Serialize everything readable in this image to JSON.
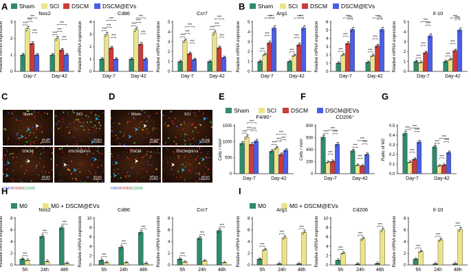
{
  "colors": {
    "green": "#2e8b6b",
    "yellow": "#ede48a",
    "red": "#cc3a3a",
    "blue": "#4a5ee8",
    "axis": "#222222",
    "arrow_cyan": "#29a9e0",
    "arrow_white": "#ffffff",
    "micro_bg": "#1a0d08"
  },
  "labels": {
    "letters": {
      "A": "A",
      "B": "B",
      "C": "C",
      "D": "D",
      "E": "E",
      "F": "F",
      "G": "G",
      "H": "H",
      "I": "I"
    },
    "sig3": "***",
    "sig1": "*",
    "sig2": "**",
    "legend_top": [
      "Sham",
      "SCI",
      "DSCM",
      "DSCM@EVs"
    ],
    "legend_bottom": [
      "M0",
      "M0 + DSCM@EVs"
    ],
    "scale_bar": "50 μm",
    "micro_C": {
      "titles": [
        "Sham",
        "SCI",
        "DSCM",
        "DSCM@EVs"
      ],
      "caption": [
        "DAPI",
        "/",
        "F4/80",
        "/",
        "CD206"
      ]
    },
    "micro_D": {
      "titles": [
        "Sham",
        "SCI",
        "DSCM",
        "DSCM@EVs"
      ],
      "caption": [
        "DAPI",
        "/",
        "F4/80",
        "/",
        "CD206"
      ]
    }
  },
  "chart_data": [
    {
      "panel": "A",
      "type": "bar",
      "title": "Nos2",
      "ylabel": "Relative mRNA expression",
      "categories": [
        "Day-7",
        "Day-42"
      ],
      "ylim": [
        0,
        3
      ],
      "ticks": [
        0,
        1,
        2,
        3
      ],
      "series": [
        {
          "name": "Sham",
          "values": [
            1.0,
            1.0
          ]
        },
        {
          "name": "SCI",
          "values": [
            2.6,
            2.0
          ]
        },
        {
          "name": "DSCM",
          "values": [
            1.7,
            1.3
          ]
        },
        {
          "name": "DSCM@EVs",
          "values": [
            1.0,
            1.0
          ]
        }
      ]
    },
    {
      "panel": "A",
      "type": "bar",
      "title": "Cd86",
      "ylabel": "Relative mRNA expression",
      "categories": [
        "Day-7",
        "Day-42"
      ],
      "ylim": [
        0,
        4
      ],
      "ticks": [
        0,
        1,
        2,
        3,
        4
      ],
      "series": [
        {
          "name": "Sham",
          "values": [
            1.0,
            1.0
          ]
        },
        {
          "name": "SCI",
          "values": [
            3.0,
            3.4
          ]
        },
        {
          "name": "DSCM",
          "values": [
            1.9,
            2.2
          ]
        },
        {
          "name": "DSCM@EVs",
          "values": [
            1.0,
            1.0
          ]
        }
      ]
    },
    {
      "panel": "A",
      "type": "bar",
      "title": "Ccr7",
      "ylabel": "Relative mRNA expression",
      "categories": [
        "Day-7",
        "Day-42"
      ],
      "ylim": [
        0,
        5
      ],
      "ticks": [
        0,
        1,
        2,
        3,
        4,
        5
      ],
      "series": [
        {
          "name": "Sham",
          "values": [
            1.0,
            1.0
          ]
        },
        {
          "name": "SCI",
          "values": [
            3.1,
            3.9
          ]
        },
        {
          "name": "DSCM",
          "values": [
            1.8,
            2.4
          ]
        },
        {
          "name": "DSCM@EVs",
          "values": [
            1.2,
            1.4
          ]
        }
      ]
    },
    {
      "panel": "B",
      "type": "bar",
      "title": "Arg1",
      "ylabel": "Relative mRNA expression",
      "categories": [
        "Day-7",
        "Day-42"
      ],
      "ylim": [
        0,
        5
      ],
      "ticks": [
        0,
        1,
        2,
        3,
        4,
        5
      ],
      "series": [
        {
          "name": "Sham",
          "values": [
            1.0,
            1.0
          ]
        },
        {
          "name": "SCI",
          "values": [
            1.7,
            1.6
          ]
        },
        {
          "name": "DSCM",
          "values": [
            2.9,
            2.7
          ]
        },
        {
          "name": "DSCM@EVs",
          "values": [
            4.4,
            4.4
          ]
        }
      ]
    },
    {
      "panel": "B",
      "type": "bar",
      "title": "",
      "ylabel": "Relative mRNA expression",
      "categories": [
        "Day-7",
        "Day-42"
      ],
      "ylim": [
        0,
        6
      ],
      "ticks": [
        0,
        1,
        2,
        3,
        4,
        5,
        6
      ],
      "series": [
        {
          "name": "Sham",
          "values": [
            1.0,
            1.1
          ]
        },
        {
          "name": "SCI",
          "values": [
            2.0,
            1.9
          ]
        },
        {
          "name": "DSCM",
          "values": [
            3.4,
            3.1
          ]
        },
        {
          "name": "DSCM@EVs",
          "values": [
            5.1,
            5.1
          ]
        }
      ]
    },
    {
      "panel": "B",
      "type": "bar",
      "title": "Il-10",
      "ylabel": "Relative mRNA expression",
      "categories": [
        "Day-7",
        "Day-42"
      ],
      "ylim": [
        0,
        5
      ],
      "ticks": [
        0,
        1,
        2,
        3,
        4,
        5
      ],
      "series": [
        {
          "name": "Sham",
          "values": [
            1.0,
            1.0
          ]
        },
        {
          "name": "SCI",
          "values": [
            0.9,
            1.2
          ]
        },
        {
          "name": "DSCM",
          "values": [
            1.9,
            2.1
          ]
        },
        {
          "name": "DSCM@EVs",
          "values": [
            3.6,
            4.2
          ]
        }
      ]
    },
    {
      "panel": "E",
      "type": "bar",
      "title": "F4/80⁺",
      "ylabel": "Cells / mm²",
      "categories": [
        "Day-7",
        "Day-42"
      ],
      "ylim": [
        0,
        1500
      ],
      "ticks": [
        0,
        500,
        1000,
        1500
      ],
      "series": [
        {
          "name": "Sham",
          "values": [
            950,
            700
          ]
        },
        {
          "name": "SCI",
          "values": [
            1150,
            800
          ]
        },
        {
          "name": "DSCM",
          "values": [
            920,
            600
          ]
        },
        {
          "name": "DSCM@EVs",
          "values": [
            1020,
            730
          ]
        }
      ]
    },
    {
      "panel": "F",
      "type": "bar",
      "title": "CD206⁺",
      "ylabel": "Cells / mm²",
      "categories": [
        "Day-7",
        "Day-42"
      ],
      "ylim": [
        0,
        800
      ],
      "ticks": [
        0,
        200,
        400,
        600,
        800
      ],
      "series": [
        {
          "name": "Sham",
          "values": [
            610,
            380
          ]
        },
        {
          "name": "SCI",
          "values": [
            190,
            140
          ]
        },
        {
          "name": "DSCM",
          "values": [
            205,
            130
          ]
        },
        {
          "name": "DSCM@EVs",
          "values": [
            490,
            320
          ]
        }
      ]
    },
    {
      "panel": "G",
      "type": "bar",
      "title": "",
      "ylabel": "Ratio of M2",
      "categories": [
        "Day-7",
        "Day-42"
      ],
      "ylim": [
        0,
        0.5
      ],
      "ticks": [
        0.0,
        0.1,
        0.2,
        0.3,
        0.4,
        0.5
      ],
      "series": [
        {
          "name": "Sham",
          "values": [
            0.42,
            0.28
          ]
        },
        {
          "name": "SCI",
          "values": [
            0.12,
            0.08
          ]
        },
        {
          "name": "DSCM",
          "values": [
            0.15,
            0.09
          ]
        },
        {
          "name": "DSCM@EVs",
          "values": [
            0.33,
            0.22
          ]
        }
      ]
    },
    {
      "panel": "H",
      "type": "bar",
      "title": "Nos2",
      "ylabel": "Relative mRNA expression",
      "categories": [
        "5h",
        "24h",
        "48h"
      ],
      "ylim": [
        0,
        8
      ],
      "ticks": [
        0,
        2,
        4,
        6,
        8
      ],
      "series": [
        {
          "name": "M0",
          "values": [
            1.0,
            4.9,
            6.4
          ]
        },
        {
          "name": "M0 + DSCM@EVs",
          "values": [
            0.8,
            0.6,
            0.3
          ]
        }
      ]
    },
    {
      "panel": "H",
      "type": "bar",
      "title": "Cd86",
      "ylabel": "Relative mRNA expression",
      "categories": [
        "5h",
        "24h",
        "48h"
      ],
      "ylim": [
        0,
        10
      ],
      "ticks": [
        0,
        2,
        4,
        6,
        8,
        10
      ],
      "series": [
        {
          "name": "M0",
          "values": [
            1.0,
            3.8,
            7.0
          ]
        },
        {
          "name": "M0 + DSCM@EVs",
          "values": [
            0.5,
            0.5,
            0.3
          ]
        }
      ]
    },
    {
      "panel": "H",
      "type": "bar",
      "title": "Ccr7",
      "ylabel": "Relative mRNA expression",
      "categories": [
        "5h",
        "24h",
        "48h"
      ],
      "ylim": [
        0,
        8
      ],
      "ticks": [
        0,
        2,
        4,
        6,
        8
      ],
      "series": [
        {
          "name": "M0",
          "values": [
            1.0,
            4.6,
            5.9
          ]
        },
        {
          "name": "M0 + DSCM@EVs",
          "values": [
            0.5,
            0.7,
            0.4
          ]
        }
      ]
    },
    {
      "panel": "I",
      "type": "bar",
      "title": "Arg1",
      "ylabel": "Relative mRNA expression",
      "categories": [
        "5h",
        "24h",
        "48h"
      ],
      "ylim": [
        0,
        8
      ],
      "ticks": [
        0,
        2,
        4,
        6,
        8
      ],
      "series": [
        {
          "name": "M0",
          "values": [
            1.0,
            0.2,
            0.2
          ]
        },
        {
          "name": "M0 + DSCM@EVs",
          "values": [
            2.6,
            4.7,
            5.6
          ]
        }
      ]
    },
    {
      "panel": "I",
      "type": "bar",
      "title": "Cd206",
      "ylabel": "Relative mRNA expression",
      "categories": [
        "5h",
        "24h",
        "48h"
      ],
      "ylim": [
        0,
        10
      ],
      "ticks": [
        0,
        2,
        4,
        6,
        8,
        10
      ],
      "series": [
        {
          "name": "M0",
          "values": [
            1.0,
            0.2,
            0.3
          ]
        },
        {
          "name": "M0 + DSCM@EVs",
          "values": [
            2.5,
            5.6,
            7.5
          ]
        }
      ]
    },
    {
      "panel": "I",
      "type": "bar",
      "title": "Il-10",
      "ylabel": "Relative mRNA expression",
      "categories": [
        "5h",
        "24h",
        "48h"
      ],
      "ylim": [
        0,
        8
      ],
      "ticks": [
        0,
        2,
        4,
        6,
        8
      ],
      "series": [
        {
          "name": "M0",
          "values": [
            1.0,
            0.2,
            0.2
          ]
        },
        {
          "name": "M0 + DSCM@EVs",
          "values": [
            2.3,
            4.3,
            6.1
          ]
        }
      ]
    }
  ]
}
